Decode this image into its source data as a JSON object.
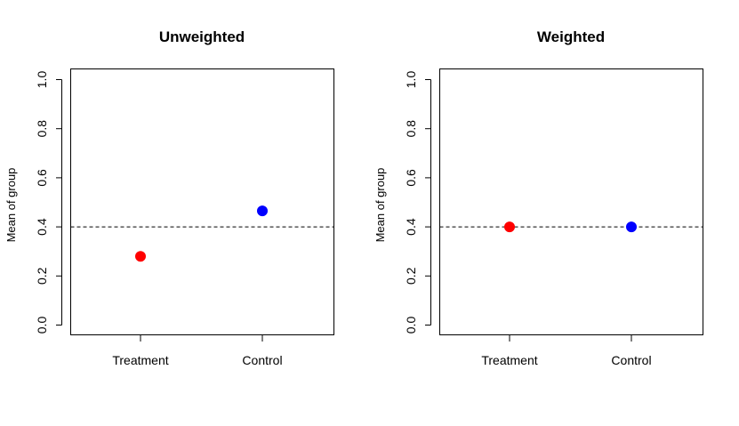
{
  "chart_data": [
    {
      "type": "scatter",
      "title": "Unweighted",
      "xlabel": "",
      "ylabel": "Mean of group",
      "ylim": [
        0.0,
        1.0
      ],
      "yticks": [
        "0.0",
        "0.2",
        "0.4",
        "0.6",
        "0.8",
        "1.0"
      ],
      "categories": [
        "Treatment",
        "Control"
      ],
      "values": [
        0.28,
        0.465
      ],
      "point_colors": [
        "#ff0000",
        "#0000ff"
      ],
      "reference_line": {
        "y": 0.4,
        "style": "dashed"
      },
      "grid": false,
      "legend": "none"
    },
    {
      "type": "scatter",
      "title": "Weighted",
      "xlabel": "",
      "ylabel": "Mean of group",
      "ylim": [
        0.0,
        1.0
      ],
      "yticks": [
        "0.0",
        "0.2",
        "0.4",
        "0.6",
        "0.8",
        "1.0"
      ],
      "categories": [
        "Treatment",
        "Control"
      ],
      "values": [
        0.4,
        0.4
      ],
      "point_colors": [
        "#ff0000",
        "#0000ff"
      ],
      "reference_line": {
        "y": 0.4,
        "style": "dashed"
      },
      "grid": false,
      "legend": "none"
    }
  ]
}
